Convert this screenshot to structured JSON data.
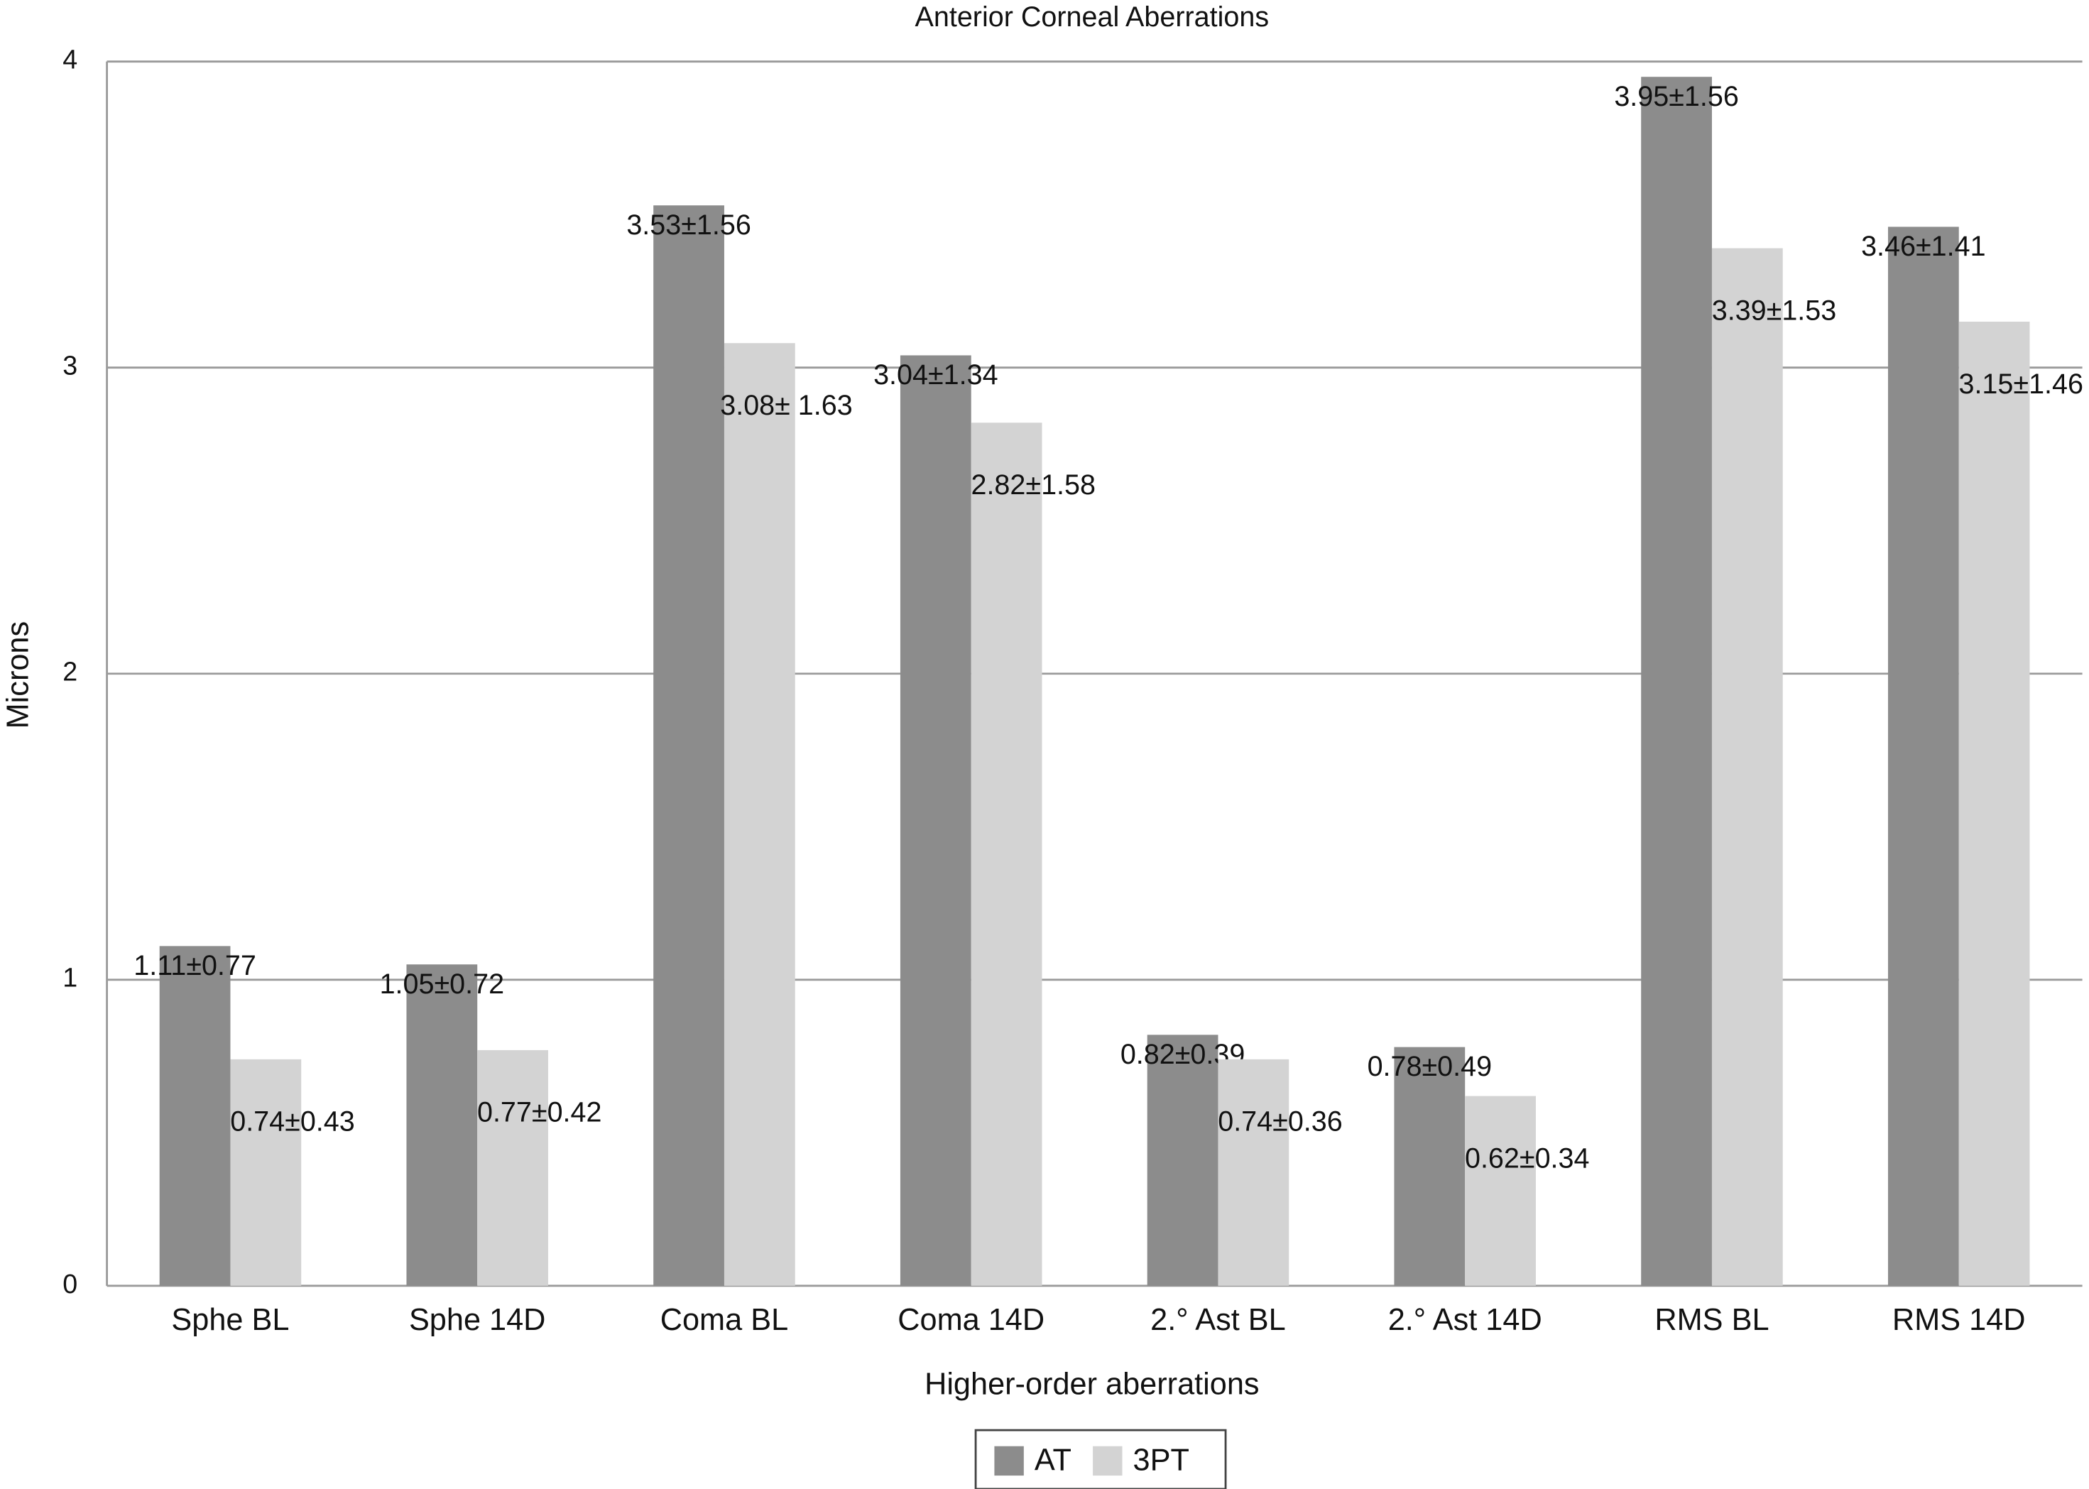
{
  "chart_data": {
    "type": "bar",
    "title": "Anterior Corneal Aberrations",
    "x_label": "Higher-order aberrations",
    "y_label": "Microns",
    "categories": [
      "Sphe BL",
      "Sphe 14D",
      "Coma BL",
      "Coma 14D",
      "2.° Ast BL",
      "2.° Ast 14D",
      "RMS BL",
      "RMS 14D"
    ],
    "series": [
      {
        "name": "AT",
        "color": "#8c8c8c",
        "values": [
          1.11,
          1.05,
          3.53,
          3.04,
          0.82,
          0.78,
          3.95,
          3.46
        ],
        "value_labels": [
          "1.11±0.77",
          "1.05±0.72",
          "3.53±1.56",
          "3.04±1.34",
          "0.82±0.39",
          "0.78±0.49",
          "3.95±1.56",
          "3.46±1.41"
        ]
      },
      {
        "name": "3PT",
        "color": "#d3d3d3",
        "values": [
          0.74,
          0.77,
          3.08,
          2.82,
          0.74,
          0.62,
          3.39,
          3.15
        ],
        "value_labels": [
          "0.74±0.43",
          "0.77±0.42",
          "3.08± 1.63",
          "2.82±1.58",
          "0.74±0.36",
          "0.62±0.34",
          "3.39±1.53",
          "3.15±1.46"
        ]
      }
    ],
    "ylim": [
      0,
      4
    ],
    "yticks": [
      0,
      1,
      2,
      3,
      4
    ],
    "grid": true,
    "legend": "bottom"
  }
}
